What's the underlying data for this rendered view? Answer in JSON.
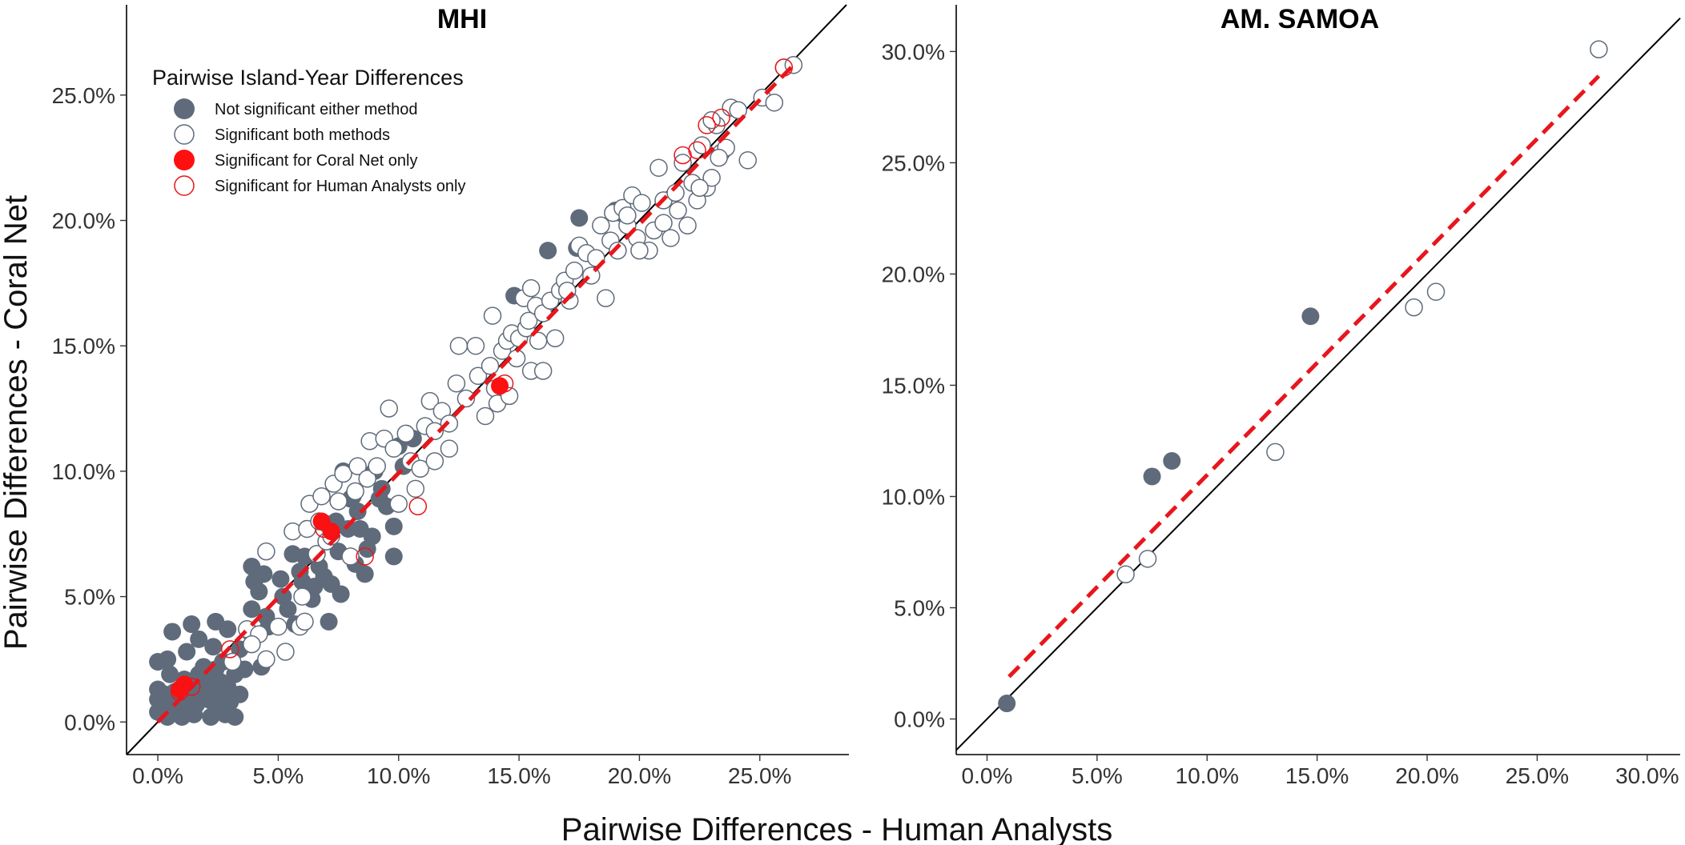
{
  "chart_data": [
    {
      "type": "scatter",
      "title": "MHI",
      "xlabel": "Pairwise Differences - Human Analysts",
      "ylabel": "Pairwise Differences - Coral Net",
      "xlim": [
        -1.3,
        28.7
      ],
      "ylim": [
        -1.3,
        28.6
      ],
      "xticks": [
        0,
        5,
        10,
        15,
        20,
        25
      ],
      "yticks": [
        0,
        5,
        10,
        15,
        20,
        25
      ],
      "tick_labels": [
        "0.0%",
        "5.0%",
        "10.0%",
        "15.0%",
        "20.0%",
        "25.0%"
      ],
      "reference_line": "y = x",
      "fit_line": {
        "from": [
          0.0,
          0.0
        ],
        "to": [
          26.5,
          26.3
        ]
      },
      "legend": {
        "title": "Pairwise Island-Year Differences",
        "entries": [
          {
            "label": "Not significant either method",
            "style": "filled",
            "color": "#5f6b7a"
          },
          {
            "label": "Significant both methods",
            "style": "open",
            "color": "#5f6b7a"
          },
          {
            "label": "Significant for Coral Net only",
            "style": "filled",
            "color": "#ff1010"
          },
          {
            "label": "Significant for Human Analysts only",
            "style": "open",
            "color": "#e8161c"
          }
        ]
      },
      "series": [
        {
          "name": "Not significant either method",
          "points": [
            [
              0,
              2.4
            ],
            [
              0,
              1.3
            ],
            [
              0,
              0.4
            ],
            [
              0,
              0.9
            ],
            [
              0.2,
              0.7
            ],
            [
              0.3,
              1.1
            ],
            [
              0.4,
              0.2
            ],
            [
              0.4,
              2.5
            ],
            [
              0.5,
              1.9
            ],
            [
              0.5,
              0.6
            ],
            [
              0.6,
              3.6
            ],
            [
              0.7,
              1.2
            ],
            [
              0.8,
              0.5
            ],
            [
              0.9,
              0.9
            ],
            [
              1,
              0.2
            ],
            [
              1.1,
              1.7
            ],
            [
              1.1,
              0.6
            ],
            [
              1.2,
              2.8
            ],
            [
              1.3,
              1.1
            ],
            [
              1.3,
              1.5
            ],
            [
              1.4,
              3.9
            ],
            [
              1.5,
              0.3
            ],
            [
              1.6,
              0.7
            ],
            [
              1.7,
              3.3
            ],
            [
              1.7,
              1.9
            ],
            [
              1.8,
              1.3
            ],
            [
              1.9,
              2.2
            ],
            [
              2.1,
              0.9
            ],
            [
              2.2,
              1.6
            ],
            [
              2.2,
              0.2
            ],
            [
              2.3,
              3.0
            ],
            [
              2.4,
              4.0
            ],
            [
              2.4,
              2.1
            ],
            [
              2.4,
              0.6
            ],
            [
              2.5,
              1.1
            ],
            [
              2.6,
              1.6
            ],
            [
              2.7,
              2.4
            ],
            [
              2.8,
              0.3
            ],
            [
              2.9,
              3.7
            ],
            [
              2.9,
              1.4
            ],
            [
              3,
              0.8
            ],
            [
              3.2,
              1.9
            ],
            [
              3.2,
              0.2
            ],
            [
              3.4,
              2.9
            ],
            [
              3.4,
              1.1
            ],
            [
              3.6,
              2.1
            ],
            [
              3.8,
              3.6
            ],
            [
              3.9,
              4.5
            ],
            [
              3.9,
              6.2
            ],
            [
              4.0,
              5.6
            ],
            [
              4.2,
              5.2
            ],
            [
              4.3,
              2.2
            ],
            [
              4.4,
              5.9
            ],
            [
              4.5,
              4.2
            ],
            [
              4.6,
              3.8
            ],
            [
              5.1,
              5.7
            ],
            [
              5.2,
              5.0
            ],
            [
              5.4,
              4.5
            ],
            [
              5.6,
              6.7
            ],
            [
              5.7,
              3.9
            ],
            [
              5.9,
              6.0
            ],
            [
              6.0,
              5.6
            ],
            [
              6.1,
              6.6
            ],
            [
              6.4,
              4.9
            ],
            [
              6.5,
              5.4
            ],
            [
              6.7,
              6.2
            ],
            [
              6.9,
              5.8
            ],
            [
              7.0,
              7.9
            ],
            [
              7.1,
              4.0
            ],
            [
              7.2,
              5.5
            ],
            [
              7.4,
              8.0
            ],
            [
              7.5,
              6.8
            ],
            [
              7.6,
              5.1
            ],
            [
              7.7,
              10.0
            ],
            [
              7.9,
              7.7
            ],
            [
              8.0,
              8.9
            ],
            [
              8.1,
              9.0
            ],
            [
              8.2,
              6.3
            ],
            [
              8.3,
              8.4
            ],
            [
              8.4,
              7.7
            ],
            [
              8.6,
              5.9
            ],
            [
              8.7,
              6.9
            ],
            [
              8.9,
              7.4
            ],
            [
              9.0,
              10.0
            ],
            [
              9.2,
              8.9
            ],
            [
              9.3,
              9.3
            ],
            [
              9.5,
              8.6
            ],
            [
              9.8,
              7.8
            ],
            [
              9.8,
              6.6
            ],
            [
              10,
              11.0
            ],
            [
              10.2,
              10.2
            ],
            [
              10.6,
              11.3
            ],
            [
              14.8,
              17.0
            ],
            [
              16.2,
              18.8
            ],
            [
              17.4,
              18.9
            ],
            [
              17.5,
              20.1
            ],
            [
              19.0,
              20.4
            ],
            [
              19.2,
              20.3
            ]
          ]
        },
        {
          "name": "Significant both methods",
          "points": [
            [
              3.1,
              2.4
            ],
            [
              3.7,
              3.7
            ],
            [
              4.2,
              3.5
            ],
            [
              4.5,
              6.8
            ],
            [
              5.0,
              3.8
            ],
            [
              5.3,
              2.8
            ],
            [
              5.6,
              7.6
            ],
            [
              5.9,
              3.8
            ],
            [
              6.1,
              4.0
            ],
            [
              6.2,
              7.7
            ],
            [
              6.3,
              8.7
            ],
            [
              6.6,
              6.7
            ],
            [
              6.7,
              8.0
            ],
            [
              6.8,
              9.0
            ],
            [
              7.0,
              7.2
            ],
            [
              7.2,
              7.4
            ],
            [
              7.3,
              9.5
            ],
            [
              7.5,
              8.8
            ],
            [
              7.7,
              9.9
            ],
            [
              8.0,
              6.6
            ],
            [
              8.2,
              9.2
            ],
            [
              8.3,
              10.2
            ],
            [
              8.7,
              9.7
            ],
            [
              8.8,
              11.2
            ],
            [
              9.1,
              10.2
            ],
            [
              9.4,
              11.3
            ],
            [
              9.6,
              12.5
            ],
            [
              9.8,
              10.9
            ],
            [
              10.3,
              11.5
            ],
            [
              10.5,
              10.4
            ],
            [
              10.7,
              9.3
            ],
            [
              10.9,
              10.1
            ],
            [
              11.1,
              11.8
            ],
            [
              11.3,
              12.8
            ],
            [
              11.5,
              11.6
            ],
            [
              11.8,
              12.4
            ],
            [
              12.1,
              11.9
            ],
            [
              12.4,
              13.5
            ],
            [
              12.5,
              15.0
            ],
            [
              12.8,
              12.9
            ],
            [
              13.2,
              15.0
            ],
            [
              13.3,
              13.8
            ],
            [
              13.6,
              12.2
            ],
            [
              13.8,
              14.2
            ],
            [
              13.9,
              16.2
            ],
            [
              14.0,
              13.3
            ],
            [
              14.1,
              12.7
            ],
            [
              14.3,
              14.8
            ],
            [
              14.5,
              15.2
            ],
            [
              14.6,
              13.0
            ],
            [
              14.7,
              15.5
            ],
            [
              14.9,
              14.5
            ],
            [
              15.0,
              15.3
            ],
            [
              15.2,
              16.9
            ],
            [
              15.3,
              15.7
            ],
            [
              15.4,
              16.0
            ],
            [
              15.5,
              14.0
            ],
            [
              15.7,
              16.6
            ],
            [
              15.8,
              15.2
            ],
            [
              16.0,
              16.3
            ],
            [
              16.3,
              16.8
            ],
            [
              16.5,
              15.3
            ],
            [
              16.7,
              17.2
            ],
            [
              16.9,
              17.6
            ],
            [
              17.1,
              16.8
            ],
            [
              17.3,
              18.0
            ],
            [
              17.5,
              19.0
            ],
            [
              17.8,
              18.7
            ],
            [
              18.0,
              17.8
            ],
            [
              18.2,
              18.5
            ],
            [
              18.4,
              19.8
            ],
            [
              18.6,
              16.9
            ],
            [
              18.8,
              19.2
            ],
            [
              18.9,
              20.3
            ],
            [
              19.1,
              18.8
            ],
            [
              19.3,
              20.5
            ],
            [
              19.5,
              19.8
            ],
            [
              19.7,
              21.0
            ],
            [
              19.9,
              19.3
            ],
            [
              20.1,
              20.7
            ],
            [
              20.4,
              18.8
            ],
            [
              20.6,
              19.6
            ],
            [
              20.8,
              22.1
            ],
            [
              21.0,
              20.8
            ],
            [
              21.3,
              19.3
            ],
            [
              21.5,
              21.1
            ],
            [
              21.6,
              20.4
            ],
            [
              21.8,
              22.3
            ],
            [
              22.0,
              19.8
            ],
            [
              22.2,
              21.5
            ],
            [
              22.4,
              20.8
            ],
            [
              22.6,
              23.0
            ],
            [
              22.8,
              21.3
            ],
            [
              23.0,
              21.7
            ],
            [
              23.2,
              23.8
            ],
            [
              23.4,
              22.7
            ],
            [
              23.6,
              22.9
            ],
            [
              23.8,
              24.5
            ],
            [
              24.1,
              24.4
            ],
            [
              24.5,
              22.4
            ],
            [
              25.1,
              24.9
            ],
            [
              25.6,
              24.7
            ],
            [
              26.0,
              26.1
            ],
            [
              26.4,
              26.2
            ],
            [
              4.5,
              2.5
            ],
            [
              3.9,
              3.1
            ],
            [
              6.0,
              5.0
            ],
            [
              10.0,
              8.7
            ],
            [
              12.1,
              10.9
            ],
            [
              11.5,
              10.4
            ],
            [
              16.0,
              14.0
            ],
            [
              15.5,
              17.3
            ],
            [
              17.0,
              17.2
            ],
            [
              19.5,
              20.2
            ],
            [
              20.0,
              18.8
            ],
            [
              21.0,
              19.9
            ],
            [
              22.5,
              21.3
            ],
            [
              23.0,
              24.0
            ],
            [
              23.3,
              22.5
            ]
          ]
        },
        {
          "name": "Significant for Coral Net only",
          "points": [
            [
              0.9,
              1.3
            ],
            [
              1.1,
              1.5
            ],
            [
              6.8,
              8.0
            ],
            [
              7.2,
              7.6
            ],
            [
              14.2,
              13.4
            ]
          ]
        },
        {
          "name": "Significant for Human Analysts only",
          "points": [
            [
              0.9,
              1.2
            ],
            [
              1.4,
              1.4
            ],
            [
              3.0,
              2.9
            ],
            [
              6.9,
              7.7
            ],
            [
              8.6,
              6.6
            ],
            [
              10.8,
              8.6
            ],
            [
              14.4,
              13.5
            ],
            [
              21.8,
              22.6
            ],
            [
              22.4,
              22.8
            ],
            [
              22.8,
              23.8
            ],
            [
              23.4,
              24.1
            ],
            [
              26.0,
              26.1
            ]
          ]
        }
      ]
    },
    {
      "type": "scatter",
      "title": "AM. SAMOA",
      "xlabel": "Pairwise Differences - Human Analysts",
      "ylabel": "Pairwise Differences - Coral Net",
      "xlim": [
        -1.4,
        31.5
      ],
      "ylim": [
        -1.6,
        32.1
      ],
      "xticks": [
        0,
        5,
        10,
        15,
        20,
        25,
        30
      ],
      "yticks": [
        0,
        5,
        10,
        15,
        20,
        25,
        30
      ],
      "tick_labels": [
        "0.0%",
        "5.0%",
        "10.0%",
        "15.0%",
        "20.0%",
        "25.0%",
        "30.0%"
      ],
      "reference_line": "y = x",
      "fit_line": {
        "from": [
          1.0,
          1.9
        ],
        "to": [
          27.8,
          28.9
        ]
      },
      "series": [
        {
          "name": "Not significant either method",
          "points": [
            [
              0.9,
              0.7
            ],
            [
              7.5,
              10.9
            ],
            [
              8.4,
              11.6
            ],
            [
              14.7,
              18.1
            ]
          ]
        },
        {
          "name": "Significant both methods",
          "points": [
            [
              6.3,
              6.5
            ],
            [
              7.3,
              7.2
            ],
            [
              13.1,
              12.0
            ],
            [
              19.4,
              18.5
            ],
            [
              20.4,
              19.2
            ],
            [
              27.8,
              30.1
            ]
          ]
        }
      ]
    }
  ],
  "figure": {
    "x_axis_title": "Pairwise Differences - Human Analysts",
    "y_axis_title": "Pairwise Differences - Coral Net",
    "colors": {
      "grey": "#5f6b7a",
      "red": "#ff1010",
      "red_open": "#e8161c",
      "reference": "#000000",
      "fit": "#e8161c"
    }
  }
}
